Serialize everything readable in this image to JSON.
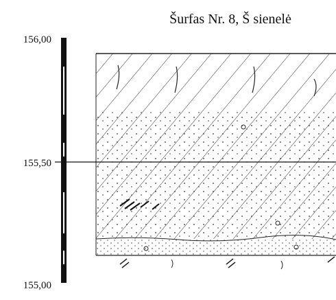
{
  "title": "Šurfas Nr. 8, Š sienelė",
  "scale": {
    "labels": [
      "156,00",
      "155,50",
      "155,00"
    ]
  }
}
